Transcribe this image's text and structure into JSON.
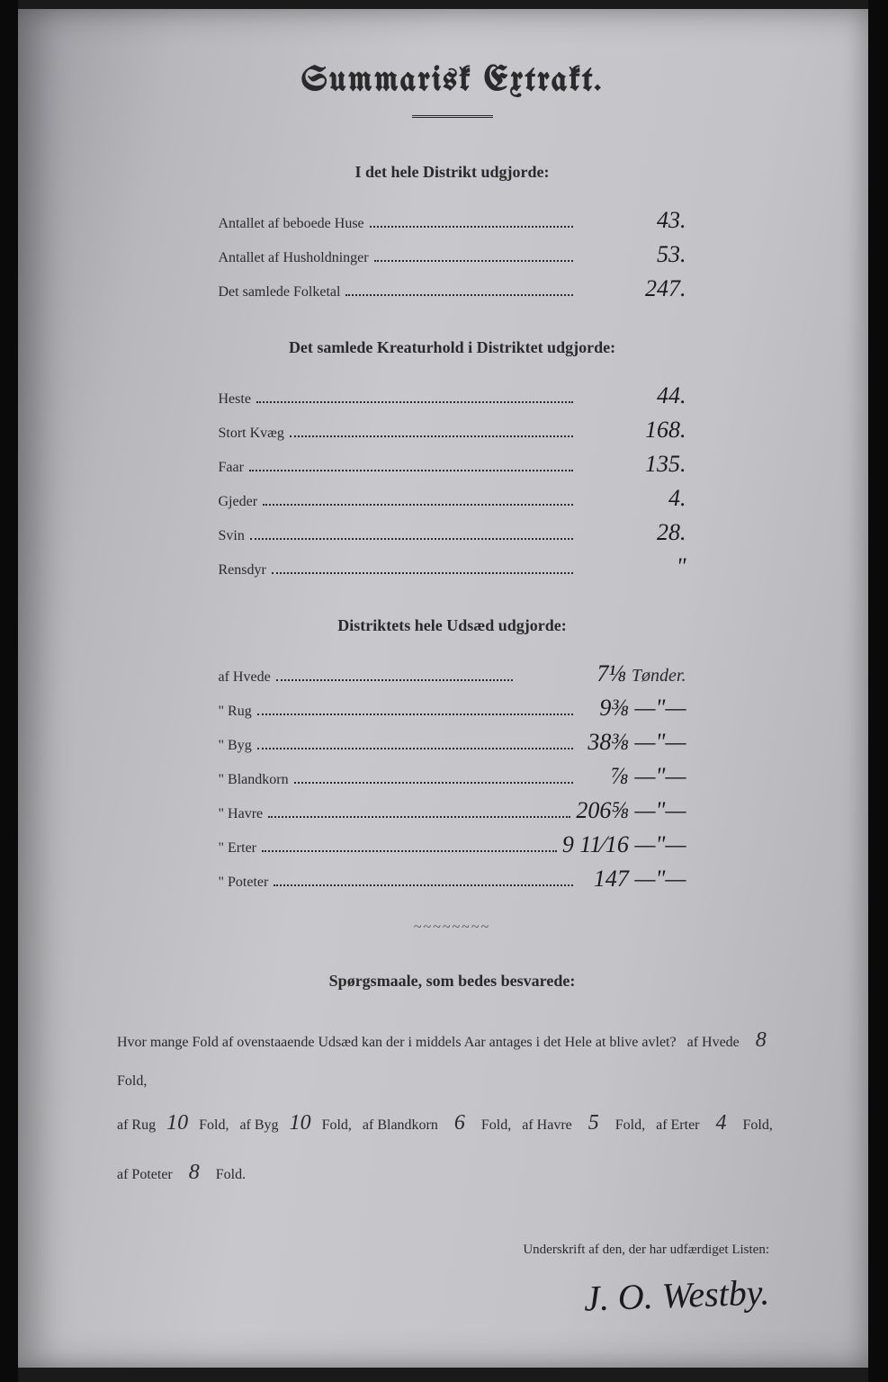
{
  "title": "Summarisk Extrakt.",
  "section1": {
    "heading": "I det hele Distrikt udgjorde:",
    "rows": [
      {
        "label": "Antallet af beboede Huse",
        "value": "43."
      },
      {
        "label": "Antallet af Husholdninger",
        "value": "53."
      },
      {
        "label": "Det samlede Folketal",
        "value": "247."
      }
    ]
  },
  "section2": {
    "heading": "Det samlede Kreaturhold i Distriktet udgjorde:",
    "rows": [
      {
        "label": "Heste",
        "value": "44."
      },
      {
        "label": "Stort Kvæg",
        "value": "168."
      },
      {
        "label": "Faar",
        "value": "135."
      },
      {
        "label": "Gjeder",
        "value": "4."
      },
      {
        "label": "Svin",
        "value": "28."
      },
      {
        "label": "Rensdyr",
        "value": "\""
      }
    ]
  },
  "section3": {
    "heading": "Distriktets hele Udsæd udgjorde:",
    "unit_first": "Tønder.",
    "rows": [
      {
        "label": "af Hvede",
        "value": "7⅛"
      },
      {
        "label": "\" Rug",
        "value": "9⅜ —\"—"
      },
      {
        "label": "\" Byg",
        "value": "38⅜ —\"—"
      },
      {
        "label": "\" Blandkorn",
        "value": "⅞ —\"—"
      },
      {
        "label": "\" Havre",
        "value": "206⅝ —\"—"
      },
      {
        "label": "\" Erter",
        "value": "9 11⁄16 —\"—"
      },
      {
        "label": "\" Poteter",
        "value": "147 —\"—"
      }
    ]
  },
  "questions": {
    "heading": "Spørgsmaale, som bedes besvarede:",
    "intro": "Hvor mange Fold af ovenstaaende Udsæd kan der i middels Aar antages i det Hele at blive avlet?",
    "items": [
      {
        "label": "af Hvede",
        "value": "8",
        "suffix": "Fold,"
      },
      {
        "label": "af Rug",
        "value": "10",
        "suffix": "Fold,"
      },
      {
        "label": "af Byg",
        "value": "10",
        "suffix": "Fold,"
      },
      {
        "label": "af Blandkorn",
        "value": "6",
        "suffix": "Fold,"
      },
      {
        "label": "af Havre",
        "value": "5",
        "suffix": "Fold,"
      },
      {
        "label": "af Erter",
        "value": "4",
        "suffix": "Fold,"
      },
      {
        "label": "af Poteter",
        "value": "8",
        "suffix": "Fold."
      }
    ]
  },
  "signature": {
    "label": "Underskrift af den, der har udfærdiget Listen:",
    "name": "J. O. Westby."
  },
  "colors": {
    "paper": "#c4c4c8",
    "ink": "#2a2a2a",
    "edge": "#0a0a0a"
  }
}
